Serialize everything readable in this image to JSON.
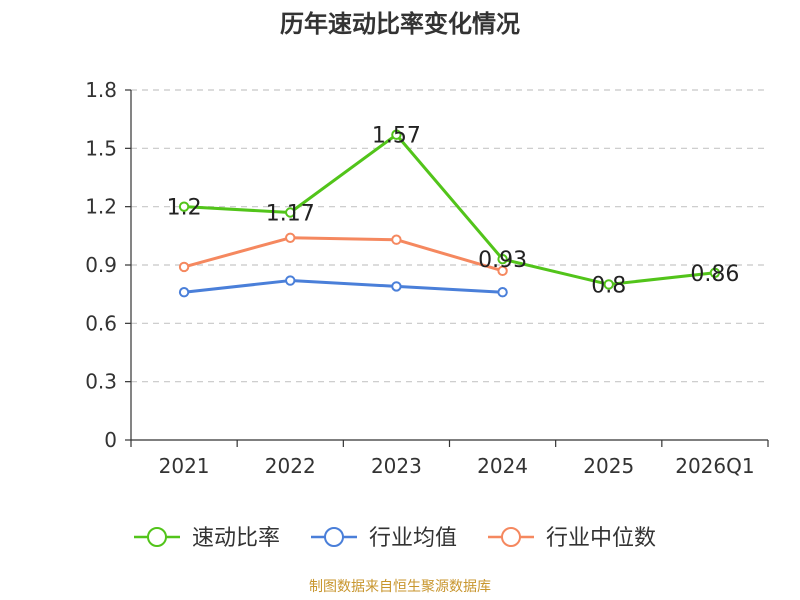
{
  "title": "历年速动比率变化情况",
  "source": "制图数据来自恒生聚源数据库",
  "colors": {
    "speed_ratio": "#52c41a",
    "industry_mean": "#4a7fd9",
    "industry_median": "#f5885f",
    "grid": "#c8c8c8",
    "axis": "#333333"
  },
  "chart_data": {
    "type": "line",
    "title": "历年速动比率变化情况",
    "categories": [
      "2021",
      "2022",
      "2023",
      "2024",
      "2025",
      "2026Q1"
    ],
    "ylim": [
      0,
      1.8
    ],
    "yticks": [
      0,
      0.3,
      0.6,
      0.9,
      1.2,
      1.5,
      1.8
    ],
    "ytick_labels": [
      "0",
      "0.3",
      "0.6",
      "0.9",
      "1.2",
      "1.5",
      "1.8"
    ],
    "grid": true,
    "legend_position": "bottom",
    "series": [
      {
        "name": "速动比率",
        "color": "#52c41a",
        "values": [
          1.2,
          1.17,
          1.57,
          0.93,
          0.8,
          0.86
        ],
        "labels": [
          "1.2",
          "1.17",
          "1.57",
          "0.93",
          "0.8",
          "0.86"
        ],
        "show_labels": true
      },
      {
        "name": "行业均值",
        "color": "#4a7fd9",
        "values": [
          0.76,
          0.82,
          0.79,
          0.76,
          null,
          null
        ],
        "show_labels": false
      },
      {
        "name": "行业中位数",
        "color": "#f5885f",
        "values": [
          0.89,
          1.04,
          1.03,
          0.87,
          null,
          null
        ],
        "show_labels": false
      }
    ]
  }
}
